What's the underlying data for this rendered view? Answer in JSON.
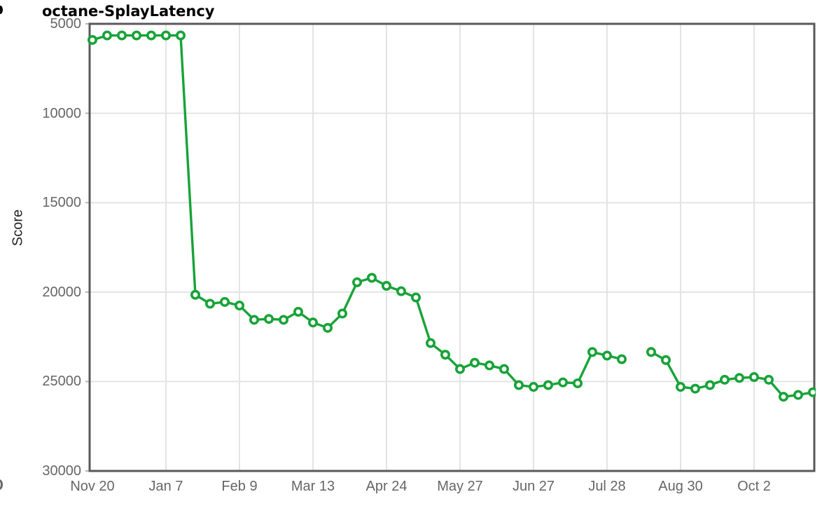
{
  "page": {
    "title": "octane-SplayLatency"
  },
  "chart_data": {
    "type": "line",
    "title": "octane-SplayLatency",
    "xlabel": "",
    "ylabel": "Score",
    "ylim": [
      5000,
      30000
    ],
    "y_axis_inverted": true,
    "grid": true,
    "legend": "none",
    "y_ticks": [
      5000,
      10000,
      15000,
      20000,
      25000,
      30000
    ],
    "x_ticks": [
      {
        "index": 0,
        "label": "Nov 20"
      },
      {
        "index": 5,
        "label": "Jan 7"
      },
      {
        "index": 10,
        "label": "Feb 9"
      },
      {
        "index": 15,
        "label": "Mar 13"
      },
      {
        "index": 20,
        "label": "Apr 24"
      },
      {
        "index": 25,
        "label": "May 27"
      },
      {
        "index": 30,
        "label": "Jun 27"
      },
      {
        "index": 35,
        "label": "Jul 28"
      },
      {
        "index": 40,
        "label": "Aug 30"
      },
      {
        "index": 45,
        "label": "Oct 2"
      }
    ],
    "series": [
      {
        "name": "octane-SplayLatency",
        "marker": "hollow-circle",
        "values": [
          5900,
          5650,
          5650,
          5650,
          5650,
          5650,
          5650,
          20150,
          20650,
          20550,
          20750,
          21550,
          21500,
          21550,
          21100,
          21700,
          22000,
          21200,
          19450,
          19200,
          19650,
          19950,
          20300,
          22850,
          23500,
          24300,
          23950,
          24100,
          24300,
          25200,
          25300,
          25200,
          25050,
          25100,
          23350,
          23550,
          23750,
          null,
          23350,
          23800,
          25300,
          25400,
          25200,
          24900,
          24800,
          24750,
          24900,
          25850,
          25750,
          25600
        ]
      }
    ],
    "colors": {
      "line": "#17a338",
      "marker_fill": "#ffffff",
      "grid": "#e4e4e4",
      "axis_border": "#595959",
      "tick": "#b5b5b5",
      "tick_text": "#666666",
      "title_text": "#000000"
    }
  }
}
